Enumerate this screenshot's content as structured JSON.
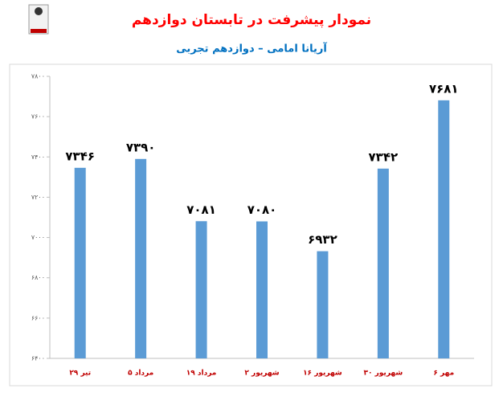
{
  "chart_data": {
    "type": "bar",
    "title": "نمودار پیشرفت در تابستان دوازدهم",
    "subtitle": "آریانا امامی – دوازدهم تجربی",
    "categories": [
      "۲۹ تیر",
      "۵ مرداد",
      "۱۹ مرداد",
      "۲ شهریور",
      "۱۶ شهریور",
      "۳۰ شهریور",
      "۶ مهر"
    ],
    "values": [
      7346,
      7390,
      7081,
      7080,
      6932,
      7342,
      7681
    ],
    "value_labels": [
      "۷۳۴۶",
      "۷۳۹۰",
      "۷۰۸۱",
      "۷۰۸۰",
      "۶۹۳۲",
      "۷۳۴۲",
      "۷۶۸۱"
    ],
    "color": "#5b9bd5",
    "ylim": [
      6400,
      7800
    ],
    "yticks": [
      {
        "value": 6400,
        "label": "۶۴۰۰"
      },
      {
        "value": 6600,
        "label": "۶۶۰۰"
      },
      {
        "value": 6800,
        "label": "۶۸۰۰"
      },
      {
        "value": 7000,
        "label": "۷۰۰۰"
      },
      {
        "value": 7200,
        "label": "۷۲۰۰"
      },
      {
        "value": 7400,
        "label": "۷۴۰۰"
      },
      {
        "value": 7600,
        "label": "۷۶۰۰"
      },
      {
        "value": 7800,
        "label": "۷۸۰۰"
      }
    ],
    "grid": false
  }
}
